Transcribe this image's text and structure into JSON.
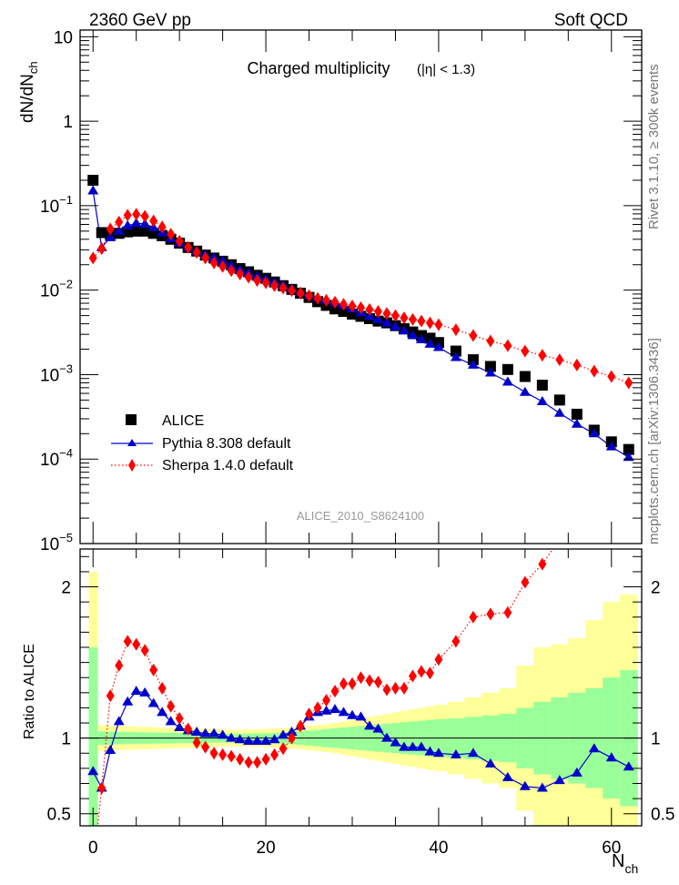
{
  "header": {
    "left_label": "2360 GeV pp",
    "right_label": "Soft QCD"
  },
  "side_labels": {
    "rivet": "Rivet 3.1.10, ≥ 300k events",
    "mcplots": "mcplots.cern.ch [arXiv:1306.3436]"
  },
  "chart_data": [
    {
      "panel": "main",
      "type": "scatter",
      "title": "Charged multiplicity",
      "title_annotation": "(|η| < 1.3)",
      "watermark": "ALICE_2010_S8624100",
      "xlabel": "N_ch",
      "ylabel": "dN/dN_ch",
      "yscale": "log",
      "xlim": [
        -1.5,
        63.5
      ],
      "ylim": [
        1e-05,
        12
      ],
      "ytick_labels": [
        "10^-5",
        "10^-4",
        "10^-3",
        "10^-2",
        "10^-1",
        "1",
        "10"
      ],
      "legend_position": "lower-left",
      "series": [
        {
          "name": "ALICE",
          "marker": "square",
          "color": "#000000",
          "x": [
            0,
            1,
            2,
            3,
            4,
            5,
            6,
            7,
            8,
            9,
            10,
            11,
            12,
            13,
            14,
            15,
            16,
            17,
            18,
            19,
            20,
            21,
            22,
            23,
            24,
            25,
            26,
            27,
            28,
            29,
            30,
            31,
            32,
            33,
            34,
            35,
            36,
            37,
            38,
            39,
            40,
            42,
            44,
            46,
            48,
            50,
            52,
            54,
            56,
            58,
            60,
            62
          ],
          "y": [
            0.2,
            0.048,
            0.046,
            0.047,
            0.049,
            0.05,
            0.05,
            0.047,
            0.044,
            0.04,
            0.036,
            0.032,
            0.029,
            0.026,
            0.024,
            0.022,
            0.02,
            0.018,
            0.0165,
            0.015,
            0.0138,
            0.0125,
            0.0113,
            0.0102,
            0.0092,
            0.0082,
            0.0073,
            0.0066,
            0.006,
            0.0056,
            0.0052,
            0.0049,
            0.0046,
            0.0043,
            0.0041,
            0.0038,
            0.0035,
            0.0032,
            0.0029,
            0.0027,
            0.0024,
            0.0019,
            0.0015,
            0.00125,
            0.00115,
            0.00095,
            0.00075,
            0.0005,
            0.00034,
            0.00022,
            0.00016,
            0.00013
          ]
        },
        {
          "name": "Pythia 8.308 default",
          "marker": "triangle",
          "line": "solid",
          "color": "#0000cc",
          "x": [
            0,
            1,
            2,
            3,
            4,
            5,
            6,
            7,
            8,
            9,
            10,
            11,
            12,
            13,
            14,
            15,
            16,
            17,
            18,
            19,
            20,
            21,
            22,
            23,
            24,
            25,
            26,
            27,
            28,
            29,
            30,
            31,
            32,
            33,
            34,
            35,
            36,
            37,
            38,
            39,
            40,
            42,
            44,
            46,
            48,
            50,
            52,
            54,
            56,
            58,
            60,
            62
          ],
          "y": [
            0.15,
            0.032,
            0.042,
            0.05,
            0.058,
            0.062,
            0.061,
            0.055,
            0.048,
            0.041,
            0.036,
            0.032,
            0.029,
            0.026,
            0.024,
            0.022,
            0.0195,
            0.0175,
            0.016,
            0.0145,
            0.0135,
            0.0124,
            0.0114,
            0.0104,
            0.0095,
            0.0088,
            0.0081,
            0.0076,
            0.0071,
            0.0066,
            0.006,
            0.0054,
            0.0049,
            0.0045,
            0.0041,
            0.0037,
            0.0033,
            0.0029,
            0.0026,
            0.0023,
            0.0021,
            0.0016,
            0.0013,
            0.00105,
            0.00082,
            0.00062,
            0.00048,
            0.00035,
            0.00026,
            0.0002,
            0.00014,
            0.000105
          ]
        },
        {
          "name": "Sherpa 1.4.0 default",
          "marker": "diamond",
          "line": "dotted",
          "color": "#ff0000",
          "x": [
            0,
            1,
            2,
            3,
            4,
            5,
            6,
            7,
            8,
            9,
            10,
            11,
            12,
            13,
            14,
            15,
            16,
            17,
            18,
            19,
            20,
            21,
            22,
            23,
            24,
            25,
            26,
            27,
            28,
            29,
            30,
            31,
            32,
            33,
            34,
            35,
            36,
            37,
            38,
            39,
            40,
            42,
            44,
            46,
            48,
            50,
            52,
            54,
            56,
            58,
            60,
            62
          ],
          "y": [
            0.024,
            0.031,
            0.053,
            0.064,
            0.077,
            0.079,
            0.075,
            0.066,
            0.056,
            0.046,
            0.038,
            0.032,
            0.028,
            0.024,
            0.021,
            0.019,
            0.017,
            0.0155,
            0.0142,
            0.013,
            0.0122,
            0.0113,
            0.0106,
            0.0099,
            0.0092,
            0.0086,
            0.008,
            0.0076,
            0.0072,
            0.0068,
            0.0065,
            0.0062,
            0.0059,
            0.0056,
            0.0053,
            0.005,
            0.0047,
            0.0045,
            0.0043,
            0.0041,
            0.0039,
            0.0034,
            0.0029,
            0.0025,
            0.0022,
            0.0019,
            0.0017,
            0.0015,
            0.0013,
            0.0011,
            0.00095,
            0.0008
          ]
        }
      ]
    },
    {
      "panel": "ratio",
      "type": "line",
      "xlabel": "N_ch",
      "ylabel": "Ratio to ALICE",
      "xlim": [
        -1.5,
        63.5
      ],
      "ylim": [
        0.42,
        2.25
      ],
      "xtick_labels": [
        "0",
        "20",
        "40",
        "60"
      ],
      "ytick_labels": [
        "0.5",
        "1",
        "2"
      ],
      "reference_line": 1.0,
      "bands": {
        "edges": [
          -0.5,
          0.5,
          1.5,
          2.5,
          3.5,
          4.5,
          5.5,
          6.5,
          7.5,
          8.5,
          9.5,
          10.5,
          11.5,
          12.5,
          13.5,
          14.5,
          15.5,
          16.5,
          17.5,
          18.5,
          19.5,
          20.5,
          21.5,
          22.5,
          23.5,
          24.5,
          25.5,
          26.5,
          27.5,
          28.5,
          29.5,
          30.5,
          31.5,
          32.5,
          33.5,
          34.5,
          35.5,
          36.5,
          37.5,
          38.5,
          39.5,
          41,
          43,
          45,
          47,
          49,
          51,
          53,
          55,
          57,
          59,
          61,
          63
        ],
        "stat_color": "#99ff99",
        "syst_color": "#ffff99",
        "inner_half_width": [
          0.6,
          0.045,
          0.043,
          0.041,
          0.04,
          0.039,
          0.038,
          0.037,
          0.036,
          0.035,
          0.034,
          0.033,
          0.032,
          0.031,
          0.03,
          0.03,
          0.029,
          0.029,
          0.03,
          0.031,
          0.032,
          0.034,
          0.036,
          0.04,
          0.045,
          0.05,
          0.055,
          0.06,
          0.065,
          0.07,
          0.075,
          0.08,
          0.085,
          0.09,
          0.095,
          0.1,
          0.105,
          0.11,
          0.115,
          0.12,
          0.125,
          0.13,
          0.14,
          0.15,
          0.16,
          0.2,
          0.24,
          0.27,
          0.3,
          0.33,
          0.4,
          0.45
        ],
        "outer_half_width": [
          1.1,
          0.085,
          0.082,
          0.08,
          0.078,
          0.076,
          0.074,
          0.072,
          0.07,
          0.068,
          0.066,
          0.064,
          0.062,
          0.06,
          0.058,
          0.057,
          0.056,
          0.056,
          0.057,
          0.058,
          0.06,
          0.063,
          0.066,
          0.07,
          0.075,
          0.08,
          0.086,
          0.092,
          0.1,
          0.11,
          0.12,
          0.13,
          0.14,
          0.15,
          0.16,
          0.17,
          0.18,
          0.19,
          0.2,
          0.21,
          0.22,
          0.24,
          0.27,
          0.3,
          0.33,
          0.48,
          0.6,
          0.62,
          0.66,
          0.78,
          0.9,
          0.95
        ]
      },
      "series": [
        {
          "name": "Pythia 8.308 default",
          "marker": "triangle",
          "line": "solid",
          "color": "#0000cc",
          "x": [
            0,
            1,
            2,
            3,
            4,
            5,
            6,
            7,
            8,
            9,
            10,
            11,
            12,
            13,
            14,
            15,
            16,
            17,
            18,
            19,
            20,
            21,
            22,
            23,
            24,
            25,
            26,
            27,
            28,
            29,
            30,
            31,
            32,
            33,
            34,
            35,
            36,
            37,
            38,
            39,
            40,
            42,
            44,
            46,
            48,
            50,
            52,
            54,
            56,
            58,
            60,
            62
          ],
          "y": [
            0.78,
            0.67,
            0.92,
            1.11,
            1.24,
            1.31,
            1.3,
            1.23,
            1.17,
            1.11,
            1.07,
            1.05,
            1.04,
            1.03,
            1.03,
            1.02,
            1.0,
            0.99,
            0.98,
            0.98,
            0.98,
            0.99,
            1.02,
            1.04,
            1.08,
            1.14,
            1.17,
            1.18,
            1.19,
            1.17,
            1.15,
            1.14,
            1.08,
            1.06,
            1.0,
            0.97,
            0.94,
            0.94,
            0.94,
            0.91,
            0.9,
            0.89,
            0.9,
            0.83,
            0.74,
            0.68,
            0.67,
            0.72,
            0.77,
            0.93,
            0.87,
            0.81
          ]
        },
        {
          "name": "Sherpa 1.4.0 default",
          "marker": "diamond",
          "line": "dotted",
          "color": "#ff0000",
          "x": [
            0,
            1,
            2,
            3,
            4,
            5,
            6,
            7,
            8,
            9,
            10,
            11,
            12,
            13,
            14,
            15,
            16,
            17,
            18,
            19,
            20,
            21,
            22,
            23,
            24,
            25,
            26,
            27,
            28,
            29,
            30,
            31,
            32,
            33,
            34,
            35,
            36,
            37,
            38,
            39,
            40,
            42,
            44,
            46,
            48,
            50,
            52
          ],
          "y": [
            0.12,
            0.67,
            1.28,
            1.48,
            1.64,
            1.62,
            1.58,
            1.45,
            1.33,
            1.21,
            1.13,
            1.06,
            0.97,
            0.94,
            0.9,
            0.89,
            0.88,
            0.86,
            0.84,
            0.84,
            0.86,
            0.89,
            0.93,
            1.0,
            1.08,
            1.16,
            1.2,
            1.25,
            1.31,
            1.36,
            1.36,
            1.4,
            1.38,
            1.37,
            1.32,
            1.33,
            1.33,
            1.41,
            1.44,
            1.43,
            1.52,
            1.64,
            1.8,
            1.82,
            1.83,
            2.03,
            2.15
          ]
        }
      ]
    }
  ]
}
